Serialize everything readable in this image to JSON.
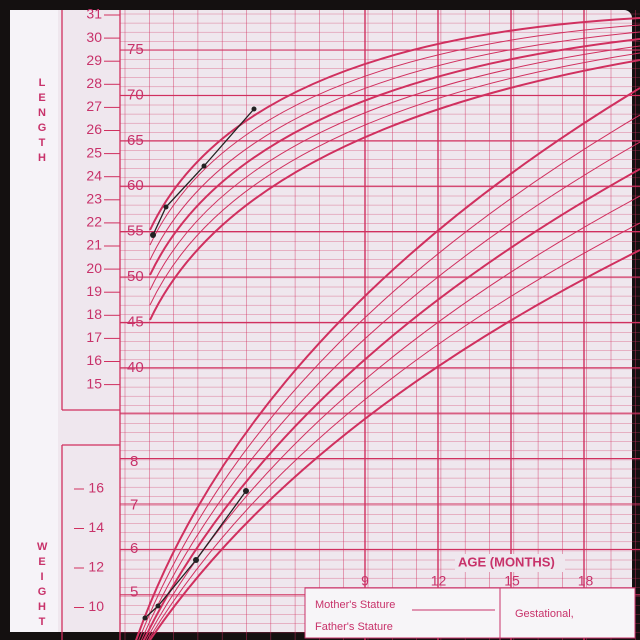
{
  "length_scale": {
    "label": "LENGTH",
    "inches": [
      "31",
      "30",
      "29",
      "28",
      "27",
      "26",
      "25",
      "24",
      "23",
      "22",
      "21",
      "20",
      "19",
      "18",
      "17",
      "16",
      "15"
    ],
    "cm": [
      "75",
      "70",
      "65",
      "60",
      "55",
      "50",
      "45",
      "40"
    ]
  },
  "weight_scale": {
    "label": "WEIGHT",
    "kg": [
      "8",
      "7",
      "6",
      "5"
    ],
    "lb": [
      "16",
      "14",
      "12",
      "10"
    ]
  },
  "age_axis": {
    "label": "AGE (MONTHS)",
    "ticks": [
      "9",
      "12",
      "15",
      "18"
    ]
  },
  "form": {
    "mothers_stature": "Mother's Stature",
    "fathers_stature": "Father's Stature",
    "gestational": "Gestational,"
  }
}
